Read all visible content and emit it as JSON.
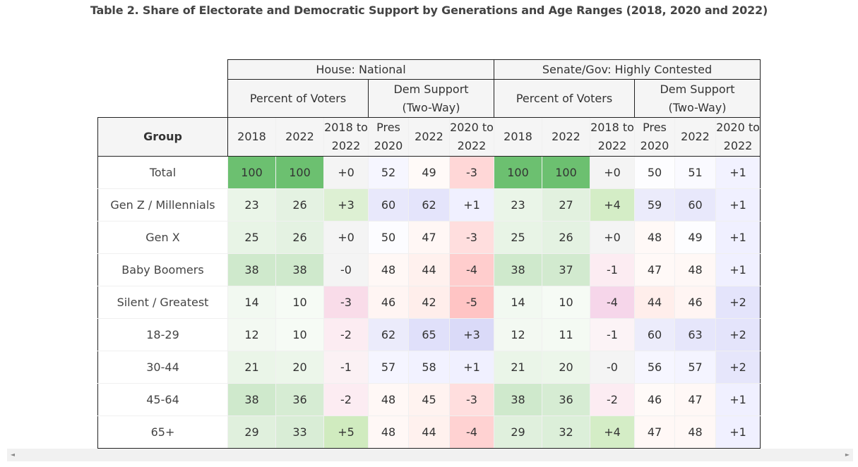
{
  "title": "Table 2. Share of Electorate and Democratic Support by Generations and Age Ranges (2018, 2020 and 2022)",
  "groups": {
    "house": "House: National",
    "senate": "Senate/Gov: Highly Contested"
  },
  "subgroups": {
    "pct_voters": "Percent of Voters",
    "dem_support_1": "Dem Support",
    "dem_support_2": "(Two-Way)"
  },
  "columns": {
    "group": "Group",
    "y2018": "2018",
    "y2022": "2022",
    "chg1_a": "2018 to",
    "chg1_b": "2022",
    "pres_a": "Pres",
    "pres_b": "2020",
    "chg2_a": "2020 to",
    "chg2_b": "2022"
  },
  "rows": [
    {
      "label": "Total",
      "v": [
        "100",
        "100",
        "+0",
        "52",
        "49",
        "-3",
        "100",
        "100",
        "+0",
        "50",
        "51",
        "+1"
      ]
    },
    {
      "label": "Gen Z / Millennials",
      "v": [
        "23",
        "26",
        "+3",
        "60",
        "62",
        "+1",
        "23",
        "27",
        "+4",
        "59",
        "60",
        "+1"
      ]
    },
    {
      "label": "Gen X",
      "v": [
        "25",
        "26",
        "+0",
        "50",
        "47",
        "-3",
        "25",
        "26",
        "+0",
        "48",
        "49",
        "+1"
      ]
    },
    {
      "label": "Baby Boomers",
      "v": [
        "38",
        "38",
        "-0",
        "48",
        "44",
        "-4",
        "38",
        "37",
        "-1",
        "47",
        "48",
        "+1"
      ]
    },
    {
      "label": "Silent / Greatest",
      "v": [
        "14",
        "10",
        "-3",
        "46",
        "42",
        "-5",
        "14",
        "10",
        "-4",
        "44",
        "46",
        "+2"
      ]
    },
    {
      "label": "18-29",
      "v": [
        "12",
        "10",
        "-2",
        "62",
        "65",
        "+3",
        "12",
        "11",
        "-1",
        "60",
        "63",
        "+2"
      ]
    },
    {
      "label": "30-44",
      "v": [
        "21",
        "20",
        "-1",
        "57",
        "58",
        "+1",
        "21",
        "20",
        "-0",
        "56",
        "57",
        "+2"
      ]
    },
    {
      "label": "45-64",
      "v": [
        "38",
        "36",
        "-2",
        "48",
        "45",
        "-3",
        "38",
        "36",
        "-2",
        "46",
        "47",
        "+1"
      ]
    },
    {
      "label": "65+",
      "v": [
        "29",
        "33",
        "+5",
        "48",
        "44",
        "-4",
        "29",
        "32",
        "+4",
        "47",
        "48",
        "+1"
      ]
    }
  ],
  "cell_colors": [
    [
      "#6cc070",
      "#6cc070",
      "#f4f4f4",
      "#f6f6ff",
      "#fffaf8",
      "#ffd7d7",
      "#6cc070",
      "#6cc070",
      "#f4f4f4",
      "#fdfdff",
      "#fafaff",
      "#f2f2ff"
    ],
    [
      "#eaf5e8",
      "#e4f2e2",
      "#ddf0d3",
      "#e8e8fb",
      "#e4e4fb",
      "#f0f0ff",
      "#eaf5e8",
      "#e2f1df",
      "#d4edc6",
      "#ebebfb",
      "#e8e8fb",
      "#f0f0ff"
    ],
    [
      "#e8f4e6",
      "#e4f2e2",
      "#f4f4f4",
      "#fcfcff",
      "#fff7f5",
      "#ffdede",
      "#e8f4e6",
      "#e4f2e2",
      "#f4f4f4",
      "#fff9f7",
      "#fdfdff",
      "#f0f0ff"
    ],
    [
      "#cfe9cc",
      "#cfe9cc",
      "#f4f4f4",
      "#fff8f6",
      "#fff1ee",
      "#ffcdcd",
      "#cfe9cc",
      "#d2eacf",
      "#fcecf2",
      "#fff9f7",
      "#fff8f6",
      "#f0f0ff"
    ],
    [
      "#f2f9f1",
      "#f6fbf5",
      "#f9dce9",
      "#fff5f3",
      "#ffeeeb",
      "#ffc4c4",
      "#f2f9f1",
      "#f6fbf5",
      "#f6d6ea",
      "#ffeeeb",
      "#fff5f3",
      "#e4e4fb"
    ],
    [
      "#f3f9f2",
      "#f6fbf5",
      "#fcecf2",
      "#ebebfb",
      "#e0e0fa",
      "#dadaf8",
      "#f3f9f2",
      "#f4faf3",
      "#fcf3f6",
      "#ececfb",
      "#e6e6fb",
      "#e4e4fb"
    ],
    [
      "#eaf5e8",
      "#ecf6ea",
      "#fbf1f4",
      "#f5f5ff",
      "#f2f2ff",
      "#f0f0ff",
      "#eaf5e8",
      "#ecf6ea",
      "#f4f4f4",
      "#f6f6ff",
      "#f4f4ff",
      "#e6e6fb"
    ],
    [
      "#cfe9cc",
      "#d6ecd3",
      "#fcecf2",
      "#fff8f6",
      "#fff3f0",
      "#ffdede",
      "#cfe9cc",
      "#d6ecd3",
      "#fcecf2",
      "#fffaf8",
      "#fff8f6",
      "#f0f0ff"
    ],
    [
      "#e0f0dd",
      "#d9edd6",
      "#d0ebbf",
      "#fff8f6",
      "#fff1ee",
      "#ffd2d2",
      "#e0f0dd",
      "#dcefd9",
      "#d4edc6",
      "#fff8f6",
      "#fff8f6",
      "#f0f0ff"
    ]
  ],
  "scrollbar": {
    "left_arrow": "◄",
    "right_arrow": "►"
  }
}
